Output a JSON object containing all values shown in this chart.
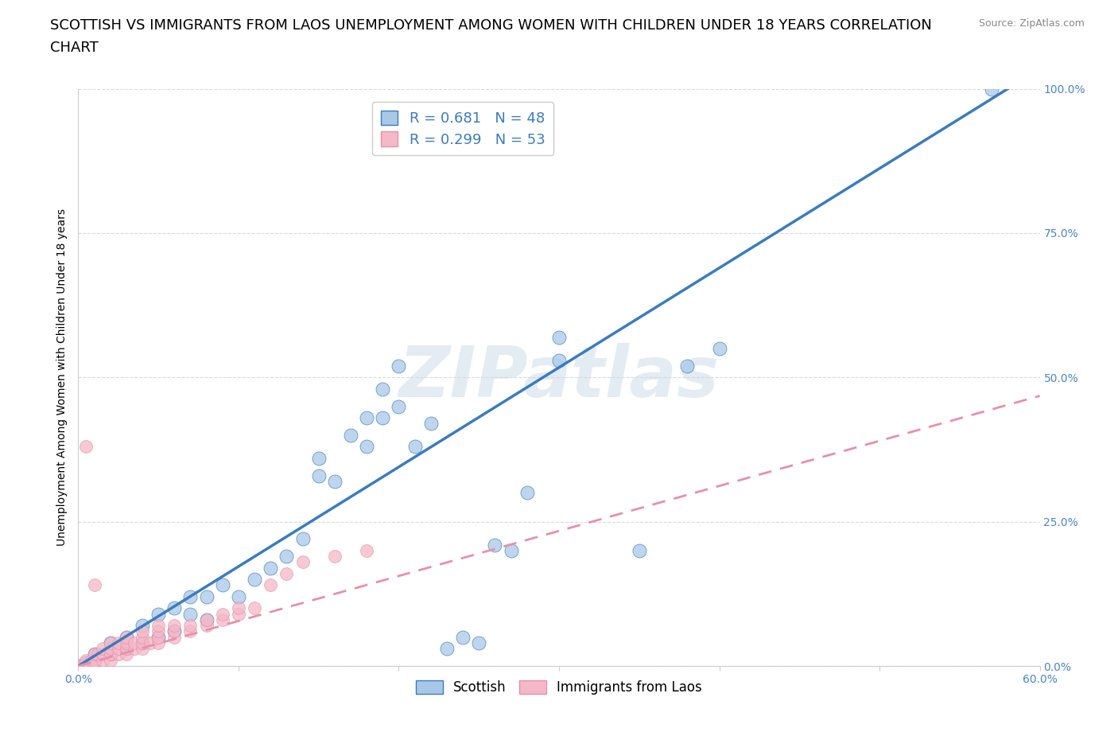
{
  "title_line1": "SCOTTISH VS IMMIGRANTS FROM LAOS UNEMPLOYMENT AMONG WOMEN WITH CHILDREN UNDER 18 YEARS CORRELATION",
  "title_line2": "CHART",
  "source": "Source: ZipAtlas.com",
  "xlabel": "",
  "ylabel": "Unemployment Among Women with Children Under 18 years",
  "xlim": [
    0.0,
    0.6
  ],
  "ylim": [
    0.0,
    1.0
  ],
  "xticks": [
    0.0,
    0.1,
    0.2,
    0.3,
    0.4,
    0.5,
    0.6
  ],
  "xticklabels": [
    "0.0%",
    "",
    "",
    "",
    "",
    "",
    "60.0%"
  ],
  "yticks": [
    0.0,
    0.25,
    0.5,
    0.75,
    1.0
  ],
  "yticklabels": [
    "0.0%",
    "25.0%",
    "50.0%",
    "75.0%",
    "100.0%"
  ],
  "blue_color": "#a8c8e8",
  "pink_color": "#f4b8c8",
  "blue_line_color": "#3a7cbf",
  "pink_line_color": "#e890a8",
  "R_blue": 0.681,
  "N_blue": 48,
  "R_pink": 0.299,
  "N_pink": 53,
  "watermark": "ZIPatlas",
  "legend_labels": [
    "Scottish",
    "Immigrants from Laos"
  ],
  "title_fontsize": 13,
  "axis_label_fontsize": 10,
  "tick_fontsize": 10,
  "blue_scatter": [
    [
      0.0,
      0.0
    ],
    [
      0.005,
      0.005
    ],
    [
      0.01,
      0.01
    ],
    [
      0.01,
      0.02
    ],
    [
      0.02,
      0.02
    ],
    [
      0.02,
      0.04
    ],
    [
      0.03,
      0.03
    ],
    [
      0.03,
      0.05
    ],
    [
      0.04,
      0.04
    ],
    [
      0.04,
      0.07
    ],
    [
      0.05,
      0.05
    ],
    [
      0.05,
      0.09
    ],
    [
      0.06,
      0.06
    ],
    [
      0.06,
      0.1
    ],
    [
      0.07,
      0.09
    ],
    [
      0.07,
      0.12
    ],
    [
      0.08,
      0.08
    ],
    [
      0.08,
      0.12
    ],
    [
      0.09,
      0.14
    ],
    [
      0.1,
      0.12
    ],
    [
      0.11,
      0.15
    ],
    [
      0.12,
      0.17
    ],
    [
      0.13,
      0.19
    ],
    [
      0.14,
      0.22
    ],
    [
      0.15,
      0.33
    ],
    [
      0.15,
      0.36
    ],
    [
      0.16,
      0.32
    ],
    [
      0.17,
      0.4
    ],
    [
      0.18,
      0.38
    ],
    [
      0.18,
      0.43
    ],
    [
      0.19,
      0.43
    ],
    [
      0.19,
      0.48
    ],
    [
      0.2,
      0.45
    ],
    [
      0.2,
      0.52
    ],
    [
      0.21,
      0.38
    ],
    [
      0.22,
      0.42
    ],
    [
      0.23,
      0.03
    ],
    [
      0.24,
      0.05
    ],
    [
      0.25,
      0.04
    ],
    [
      0.26,
      0.21
    ],
    [
      0.27,
      0.2
    ],
    [
      0.28,
      0.3
    ],
    [
      0.3,
      0.53
    ],
    [
      0.3,
      0.57
    ],
    [
      0.35,
      0.2
    ],
    [
      0.38,
      0.52
    ],
    [
      0.4,
      0.55
    ],
    [
      0.57,
      1.0
    ]
  ],
  "pink_scatter": [
    [
      0.0,
      0.0
    ],
    [
      0.003,
      0.0
    ],
    [
      0.005,
      0.0
    ],
    [
      0.005,
      0.01
    ],
    [
      0.008,
      0.01
    ],
    [
      0.01,
      0.0
    ],
    [
      0.01,
      0.01
    ],
    [
      0.01,
      0.02
    ],
    [
      0.012,
      0.02
    ],
    [
      0.015,
      0.01
    ],
    [
      0.015,
      0.02
    ],
    [
      0.015,
      0.03
    ],
    [
      0.02,
      0.01
    ],
    [
      0.02,
      0.02
    ],
    [
      0.02,
      0.03
    ],
    [
      0.02,
      0.04
    ],
    [
      0.025,
      0.02
    ],
    [
      0.025,
      0.03
    ],
    [
      0.025,
      0.04
    ],
    [
      0.03,
      0.02
    ],
    [
      0.03,
      0.03
    ],
    [
      0.03,
      0.04
    ],
    [
      0.03,
      0.05
    ],
    [
      0.035,
      0.03
    ],
    [
      0.035,
      0.04
    ],
    [
      0.04,
      0.03
    ],
    [
      0.04,
      0.04
    ],
    [
      0.04,
      0.05
    ],
    [
      0.04,
      0.06
    ],
    [
      0.045,
      0.04
    ],
    [
      0.05,
      0.04
    ],
    [
      0.05,
      0.05
    ],
    [
      0.05,
      0.06
    ],
    [
      0.05,
      0.07
    ],
    [
      0.06,
      0.05
    ],
    [
      0.06,
      0.06
    ],
    [
      0.06,
      0.07
    ],
    [
      0.07,
      0.06
    ],
    [
      0.07,
      0.07
    ],
    [
      0.08,
      0.07
    ],
    [
      0.08,
      0.08
    ],
    [
      0.09,
      0.08
    ],
    [
      0.09,
      0.09
    ],
    [
      0.1,
      0.09
    ],
    [
      0.1,
      0.1
    ],
    [
      0.11,
      0.1
    ],
    [
      0.12,
      0.14
    ],
    [
      0.13,
      0.16
    ],
    [
      0.14,
      0.18
    ],
    [
      0.16,
      0.19
    ],
    [
      0.18,
      0.2
    ],
    [
      0.005,
      0.38
    ],
    [
      0.01,
      0.14
    ]
  ],
  "blue_line_slope": 1.724,
  "blue_line_intercept": 0.0,
  "pink_line_slope": 0.78,
  "pink_line_intercept": 0.0
}
